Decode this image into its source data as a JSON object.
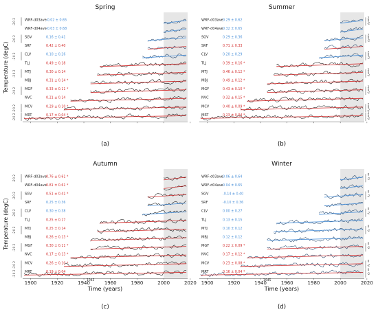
{
  "figure": {
    "ylabel": "Temperature (degC)",
    "xlabel": "Time (years)",
    "xticks": [
      1900,
      1920,
      1940,
      1960,
      1980,
      2000,
      2020
    ],
    "xlim": [
      1894,
      2018
    ],
    "marker": "1945",
    "shaded_from": 2000,
    "colors": {
      "black": "#222222",
      "red": "#d32f2f",
      "blue": "#3b7fc4",
      "shade": "#e6e6e6",
      "anomaly_blue": "#4a90d9"
    }
  },
  "chart_data": [
    {
      "type": "line",
      "panel_label": "(a)",
      "title": "Spring",
      "y_tick_labels": [
        "2",
        "0",
        "-2"
      ],
      "show_xaxis": false,
      "stations": [
        {
          "name": "WRF-d03ave",
          "trend": "-0.02 ± 0.65",
          "significant": false,
          "color_group": "blue",
          "start": 2000,
          "end": 2017
        },
        {
          "name": "WRF-d04ave",
          "trend": "-0.03 ± 0.68",
          "significant": false,
          "color_group": "blue",
          "start": 2000,
          "end": 2017
        },
        {
          "name": "SGV",
          "trend": "0.16 ± 0.41",
          "significant": false,
          "color_group": "blue",
          "start": 1988,
          "end": 2017
        },
        {
          "name": "SRF",
          "trend": "0.42 ± 0.40",
          "significant": false,
          "color_group": "red",
          "start": 1988,
          "end": 2017
        },
        {
          "name": "CLV",
          "trend": "0.10 ± 0.26",
          "significant": false,
          "color_group": "blue",
          "start": 1984,
          "end": 2017
        },
        {
          "name": "TLJ",
          "trend": "0.49 ± 0.18",
          "significant": false,
          "color_group": "red",
          "start": 1952,
          "end": 2017
        },
        {
          "name": "MTJ",
          "trend": "0.30 ± 0.14",
          "significant": false,
          "color_group": "red",
          "start": 1950,
          "end": 2017
        },
        {
          "name": "MBJ",
          "trend": "0.31 ± 0.14 *",
          "significant": true,
          "color_group": "red",
          "start": 1945,
          "end": 2017
        },
        {
          "name": "MGF",
          "trend": "0.33 ± 0.11 *",
          "significant": true,
          "color_group": "red",
          "start": 1945,
          "end": 2017
        },
        {
          "name": "NVC",
          "trend": "0.21 ± 0.14",
          "significant": false,
          "color_group": "red",
          "start": 1930,
          "end": 2017
        },
        {
          "name": "MCV",
          "trend": "0.29 ± 0.10 *",
          "significant": true,
          "color_group": "red",
          "start": 1925,
          "end": 2017
        },
        {
          "name": "MRT",
          "trend": "0.17 ± 0.04 *",
          "significant": true,
          "color_group": "red",
          "start": 1895,
          "end": 2017
        }
      ]
    },
    {
      "type": "line",
      "panel_label": "(b)",
      "title": "Summer",
      "y_tick_labels": [
        "2",
        "0",
        "-2"
      ],
      "show_xaxis": false,
      "stations": [
        {
          "name": "WRF-d03ave",
          "trend": "0.29 ± 0.62",
          "significant": false,
          "color_group": "blue",
          "start": 2000,
          "end": 2017
        },
        {
          "name": "WRF-d04ave",
          "trend": "0.32 ± 0.65",
          "significant": false,
          "color_group": "blue",
          "start": 2000,
          "end": 2017
        },
        {
          "name": "SGV",
          "trend": "0.29 ± 0.36",
          "significant": false,
          "color_group": "blue",
          "start": 1988,
          "end": 2017
        },
        {
          "name": "SRF",
          "trend": "0.71 ± 0.33",
          "significant": false,
          "color_group": "red",
          "start": 1988,
          "end": 2017
        },
        {
          "name": "CLV",
          "trend": "0.20 ± 0.29",
          "significant": false,
          "color_group": "blue",
          "start": 1984,
          "end": 2017
        },
        {
          "name": "TLJ",
          "trend": "0.39 ± 0.16 *",
          "significant": true,
          "color_group": "red",
          "start": 1952,
          "end": 2017
        },
        {
          "name": "MTJ",
          "trend": "0.46 ± 0.12 *",
          "significant": true,
          "color_group": "red",
          "start": 1950,
          "end": 2017
        },
        {
          "name": "MBJ",
          "trend": "0.49 ± 0.12 *",
          "significant": true,
          "color_group": "red",
          "start": 1945,
          "end": 2017
        },
        {
          "name": "MGF",
          "trend": "0.43 ± 0.10 *",
          "significant": true,
          "color_group": "red",
          "start": 1945,
          "end": 2017
        },
        {
          "name": "NVC",
          "trend": "0.32 ± 0.15 *",
          "significant": true,
          "color_group": "red",
          "start": 1930,
          "end": 2017
        },
        {
          "name": "MCV",
          "trend": "0.40 ± 0.09 *",
          "significant": true,
          "color_group": "red",
          "start": 1925,
          "end": 2017
        },
        {
          "name": "MRT",
          "trend": "0.23 ± 0.04 *",
          "significant": true,
          "color_group": "red",
          "start": 1895,
          "end": 2017
        }
      ]
    },
    {
      "type": "line",
      "panel_label": "(c)",
      "title": "Autumn",
      "y_tick_labels": [
        "2",
        "0",
        "-2"
      ],
      "show_xaxis": true,
      "stations": [
        {
          "name": "WRF-d03ave",
          "trend": "0.76 ± 0.61 *",
          "significant": true,
          "color_group": "red",
          "start": 2000,
          "end": 2017
        },
        {
          "name": "WRF-d04ave",
          "trend": "0.81 ± 0.61 *",
          "significant": true,
          "color_group": "red",
          "start": 2000,
          "end": 2017
        },
        {
          "name": "SGV",
          "trend": "0.51 ± 0.41 *",
          "significant": true,
          "color_group": "red",
          "start": 1988,
          "end": 2017
        },
        {
          "name": "SRF",
          "trend": "0.25 ± 0.36",
          "significant": false,
          "color_group": "blue",
          "start": 1988,
          "end": 2017
        },
        {
          "name": "CLV",
          "trend": "0.30 ± 0.38",
          "significant": false,
          "color_group": "blue",
          "start": 1984,
          "end": 2017
        },
        {
          "name": "TLJ",
          "trend": "0.25 ± 0.17",
          "significant": false,
          "color_group": "red",
          "start": 1952,
          "end": 2017
        },
        {
          "name": "MTJ",
          "trend": "0.25 ± 0.14",
          "significant": false,
          "color_group": "red",
          "start": 1950,
          "end": 2017
        },
        {
          "name": "MBJ",
          "trend": "0.26 ± 0.13 *",
          "significant": true,
          "color_group": "red",
          "start": 1945,
          "end": 2017
        },
        {
          "name": "MGF",
          "trend": "0.30 ± 0.11 *",
          "significant": true,
          "color_group": "red",
          "start": 1945,
          "end": 2017
        },
        {
          "name": "NVC",
          "trend": "0.17 ± 0.13 *",
          "significant": true,
          "color_group": "red",
          "start": 1930,
          "end": 2017
        },
        {
          "name": "MCV",
          "trend": "0.26 ± 0.10 *",
          "significant": true,
          "color_group": "red",
          "start": 1925,
          "end": 2017
        },
        {
          "name": "MRT",
          "trend": "0.19 ± 0.04",
          "significant": false,
          "color_group": "red",
          "start": 1895,
          "end": 2017
        }
      ]
    },
    {
      "type": "line",
      "panel_label": "(d)",
      "title": "Winter",
      "y_tick_labels": [
        "0",
        "-2"
      ],
      "show_xaxis": true,
      "stations": [
        {
          "name": "WRF-d03ave",
          "trend": "0.06 ± 0.64",
          "significant": false,
          "color_group": "blue",
          "start": 2000,
          "end": 2017
        },
        {
          "name": "WRF-d04ave",
          "trend": "0.04 ± 0.65",
          "significant": false,
          "color_group": "blue",
          "start": 2000,
          "end": 2017
        },
        {
          "name": "SGV",
          "trend": "-0.14 ± 0.40",
          "significant": false,
          "color_group": "blue",
          "start": 1988,
          "end": 2017
        },
        {
          "name": "SRF",
          "trend": "-0.10 ± 0.36",
          "significant": false,
          "color_group": "blue",
          "start": 1988,
          "end": 2017
        },
        {
          "name": "CLV",
          "trend": "0.00 ± 0.27",
          "significant": false,
          "color_group": "blue",
          "start": 1984,
          "end": 2017
        },
        {
          "name": "TLJ",
          "trend": "0.13 ± 0.15",
          "significant": false,
          "color_group": "blue",
          "start": 1952,
          "end": 2017
        },
        {
          "name": "MTJ",
          "trend": "0.10 ± 0.12",
          "significant": false,
          "color_group": "blue",
          "start": 1950,
          "end": 2017
        },
        {
          "name": "MBJ",
          "trend": "0.12 ± 0.12",
          "significant": false,
          "color_group": "blue",
          "start": 1945,
          "end": 2017
        },
        {
          "name": "MGF",
          "trend": "0.22 ± 0.09 *",
          "significant": true,
          "color_group": "red",
          "start": 1945,
          "end": 2017
        },
        {
          "name": "NVC",
          "trend": "0.17 ± 0.12 *",
          "significant": true,
          "color_group": "red",
          "start": 1930,
          "end": 2017
        },
        {
          "name": "MCV",
          "trend": "0.23 ± 0.08 *",
          "significant": true,
          "color_group": "red",
          "start": 1925,
          "end": 2017
        },
        {
          "name": "MRT",
          "trend": "0.16 ± 0.04 *",
          "significant": true,
          "color_group": "red",
          "start": 1895,
          "end": 2017
        }
      ]
    }
  ]
}
